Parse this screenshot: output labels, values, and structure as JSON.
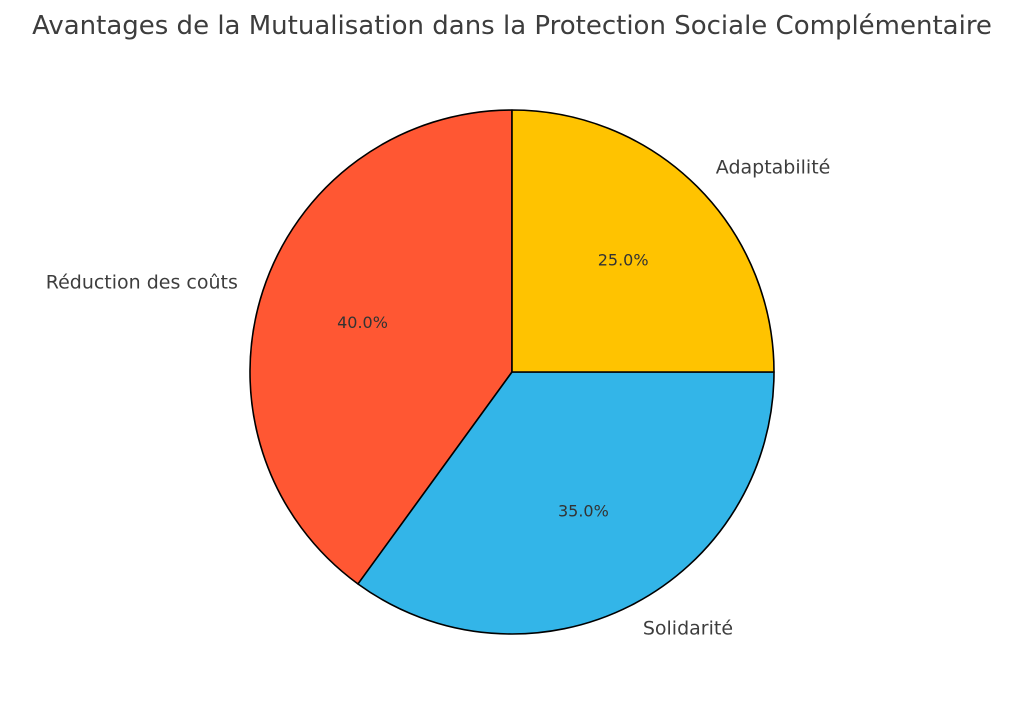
{
  "chart_data": {
    "type": "pie",
    "title": "Avantages de la Mutualisation dans la Protection Sociale Complémentaire",
    "start_angle_deg": 90,
    "direction": "counterclockwise",
    "slices": [
      {
        "label": "Réduction des coûts",
        "value": 40.0,
        "pct_label": "40.0%",
        "color": "#FF5733"
      },
      {
        "label": "Solidarité",
        "value": 35.0,
        "pct_label": "35.0%",
        "color": "#33B5E8"
      },
      {
        "label": "Adaptabilité",
        "value": 25.0,
        "pct_label": "25.0%",
        "color": "#FFC300"
      }
    ],
    "edge_color": "#000000",
    "legend": "none"
  }
}
